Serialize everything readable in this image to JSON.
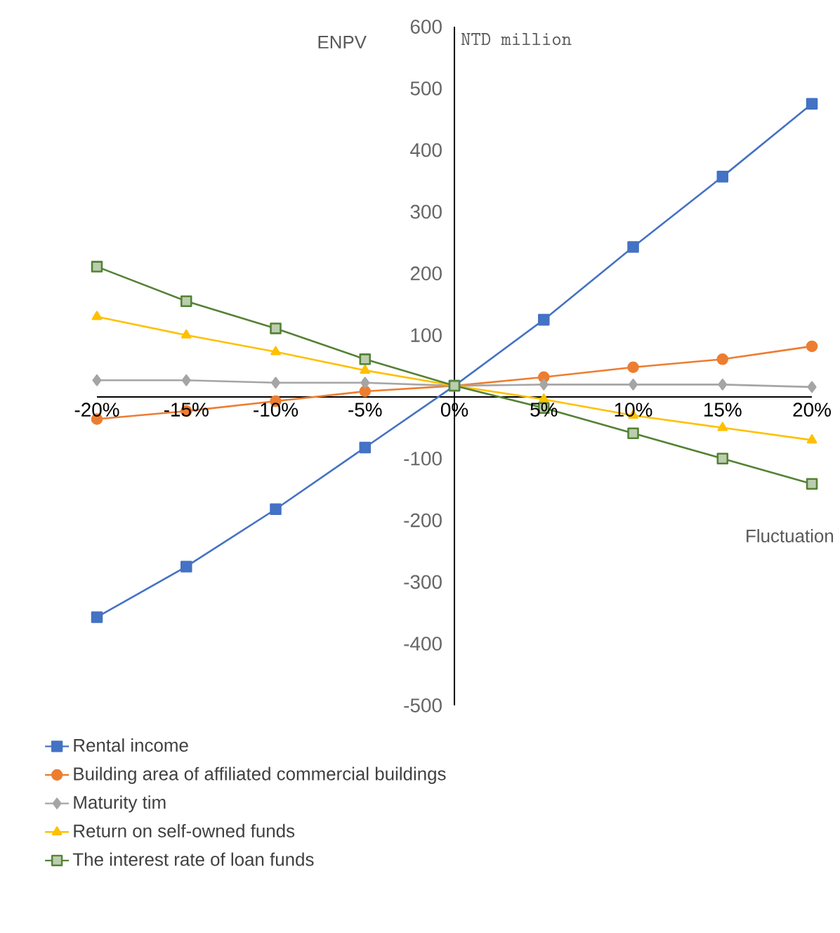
{
  "chart_data": {
    "type": "line",
    "ylabel": "ENPV",
    "xlabel": "Fluctuation",
    "annotations": [
      "NTD million"
    ],
    "x": [
      -20,
      -15,
      -10,
      -5,
      0,
      5,
      10,
      15,
      20
    ],
    "xlim": [
      -20,
      20
    ],
    "xticks": [
      {
        "value": -20,
        "label": "-20%"
      },
      {
        "value": -15,
        "label": "-15%"
      },
      {
        "value": -10,
        "label": "-10%"
      },
      {
        "value": -5,
        "label": "-5%"
      },
      {
        "value": 0,
        "label": "0%"
      },
      {
        "value": 5,
        "label": "5%"
      },
      {
        "value": 10,
        "label": "10%"
      },
      {
        "value": 15,
        "label": "15%"
      },
      {
        "value": 20,
        "label": "20%"
      }
    ],
    "ylim": [
      -500,
      600
    ],
    "yticks": [
      -500,
      -400,
      -300,
      -200,
      -100,
      100,
      200,
      300,
      400,
      500,
      600
    ],
    "legend": "bottom",
    "grid": false,
    "series": [
      {
        "name": "Rental income",
        "color": "#4472c4",
        "marker": "square",
        "values": [
          -357,
          -275,
          -182,
          -82,
          18,
          125,
          243,
          357,
          475
        ]
      },
      {
        "name": "Building area of affiliated commercial buildings",
        "color": "#ed7d31",
        "marker": "circle",
        "values": [
          -36,
          -23,
          -7,
          9,
          18,
          32,
          48,
          61,
          82
        ]
      },
      {
        "name": "Maturity tim",
        "color": "#a5a5a5",
        "marker": "diamond",
        "values": [
          27,
          27,
          23,
          23,
          18,
          20,
          20,
          20,
          16
        ]
      },
      {
        "name": "Return on self-owned funds",
        "color": "#ffc000",
        "marker": "triangle",
        "values": [
          130,
          100,
          73,
          43,
          18,
          -4,
          -30,
          -50,
          -70
        ]
      },
      {
        "name": "The interest rate of loan funds",
        "color": "#548235",
        "marker": "square",
        "values": [
          211,
          155,
          111,
          61,
          18,
          -18,
          -59,
          -100,
          -141
        ]
      }
    ]
  }
}
